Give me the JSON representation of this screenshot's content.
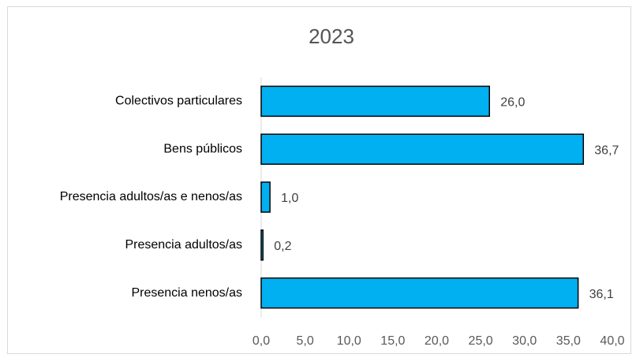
{
  "chart_data": {
    "type": "bar",
    "orientation": "horizontal",
    "title": "2023",
    "categories": [
      "Colectivos particulares",
      "Bens públicos",
      "Presencia adultos/as e nenos/as",
      "Presencia adultos/as",
      "Presencia nenos/as"
    ],
    "values": [
      26.0,
      36.7,
      1.0,
      0.2,
      36.1
    ],
    "value_labels": [
      "26,0",
      "36,7",
      "1,0",
      "0,2",
      "36,1"
    ],
    "color": "#00b0f0",
    "xlim": [
      0,
      40
    ],
    "xticks": [
      {
        "value": 0,
        "label": "0,0"
      },
      {
        "value": 5,
        "label": "5,0"
      },
      {
        "value": 10,
        "label": "10,0"
      },
      {
        "value": 15,
        "label": "15,0"
      },
      {
        "value": 20,
        "label": "20,0"
      },
      {
        "value": 25,
        "label": "25,0"
      },
      {
        "value": 30,
        "label": "30,0"
      },
      {
        "value": 35,
        "label": "35,0"
      },
      {
        "value": 40,
        "label": "40,0"
      }
    ],
    "grid": false
  }
}
